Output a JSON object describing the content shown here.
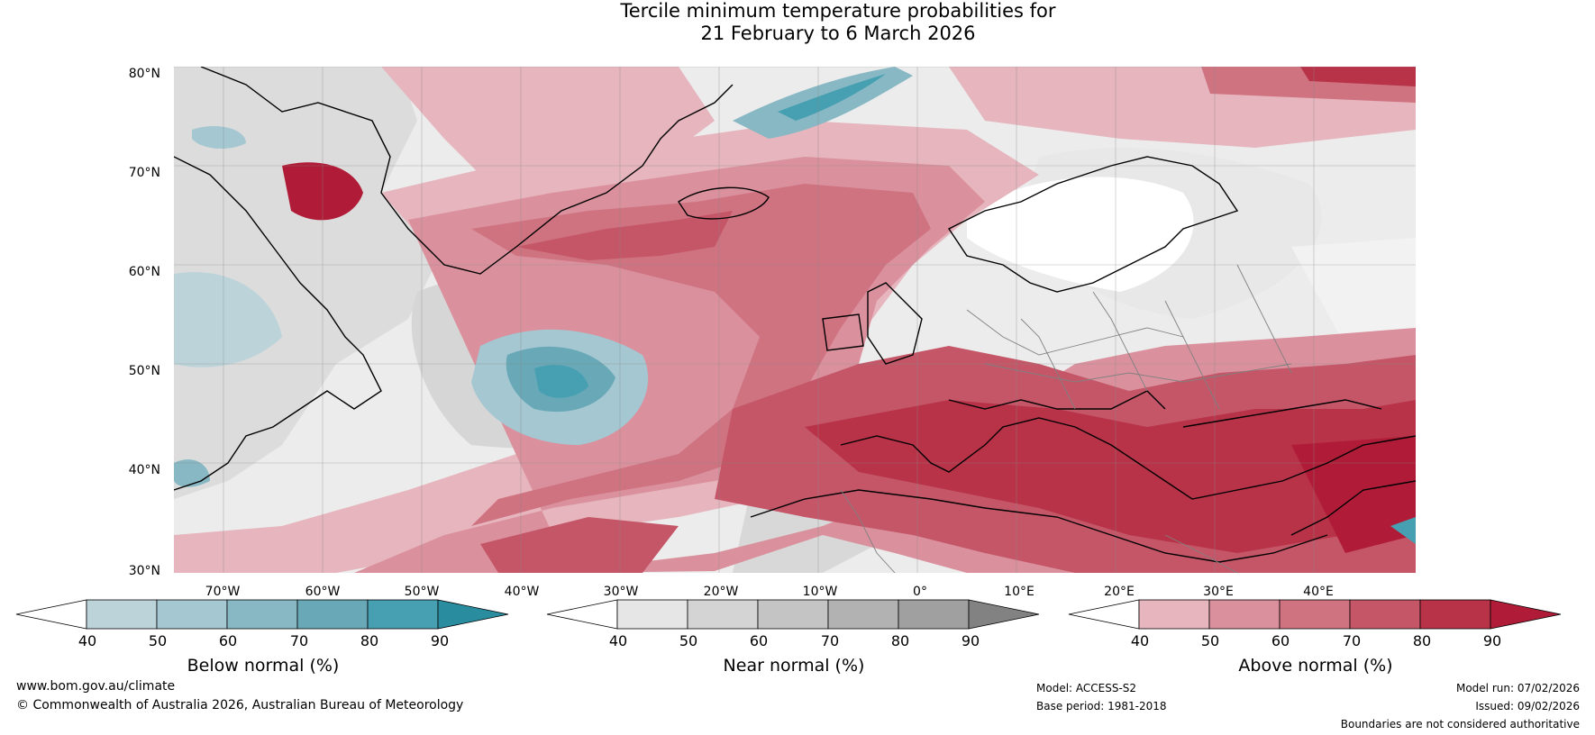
{
  "title": {
    "line1": "Tercile minimum temperature probabilities for",
    "line2": "21 February to 6 March 2026"
  },
  "map": {
    "lat_labels": [
      "80°N",
      "70°N",
      "60°N",
      "50°N",
      "40°N",
      "30°N"
    ],
    "lon_labels": [
      "70°W",
      "60°W",
      "50°W",
      "40°W",
      "30°W",
      "20°W",
      "10°W",
      "0°",
      "10°E",
      "20°E",
      "30°E",
      "40°E"
    ],
    "colors": {
      "below": "#4aa2b4",
      "near": "#c8c8c8",
      "above": "#c0354d",
      "coast": "#000000",
      "border": "#808080"
    }
  },
  "colorbars": [
    {
      "title": "Below normal (%)",
      "ticks": [
        "40",
        "50",
        "60",
        "70",
        "80",
        "90"
      ],
      "colors": [
        "#ffffff",
        "#bcd3da",
        "#a4c7d1",
        "#88b8c4",
        "#68a8b7",
        "#47a0b2",
        "#2a8c9f"
      ]
    },
    {
      "title": "Near normal (%)",
      "ticks": [
        "40",
        "50",
        "60",
        "70",
        "80",
        "90"
      ],
      "colors": [
        "#ffffff",
        "#e6e6e6",
        "#d4d4d4",
        "#c4c4c4",
        "#b2b2b2",
        "#a0a0a0",
        "#828282"
      ]
    },
    {
      "title": "Above normal (%)",
      "ticks": [
        "40",
        "50",
        "60",
        "70",
        "80",
        "90"
      ],
      "colors": [
        "#ffffff",
        "#e6b5bd",
        "#da919d",
        "#cf7381",
        "#c45668",
        "#b83348",
        "#b01c37"
      ]
    }
  ],
  "footer": {
    "website": "www.bom.gov.au/climate",
    "copyright": "© Commonwealth of Australia 2026, Australian Bureau of Meteorology",
    "model": "Model: ACCESS-S2",
    "base_period": "Base period: 1981-2018",
    "model_run": "Model run: 07/02/2026",
    "issued": "Issued: 09/02/2026",
    "disclaimer": "Boundaries are not considered authoritative"
  }
}
